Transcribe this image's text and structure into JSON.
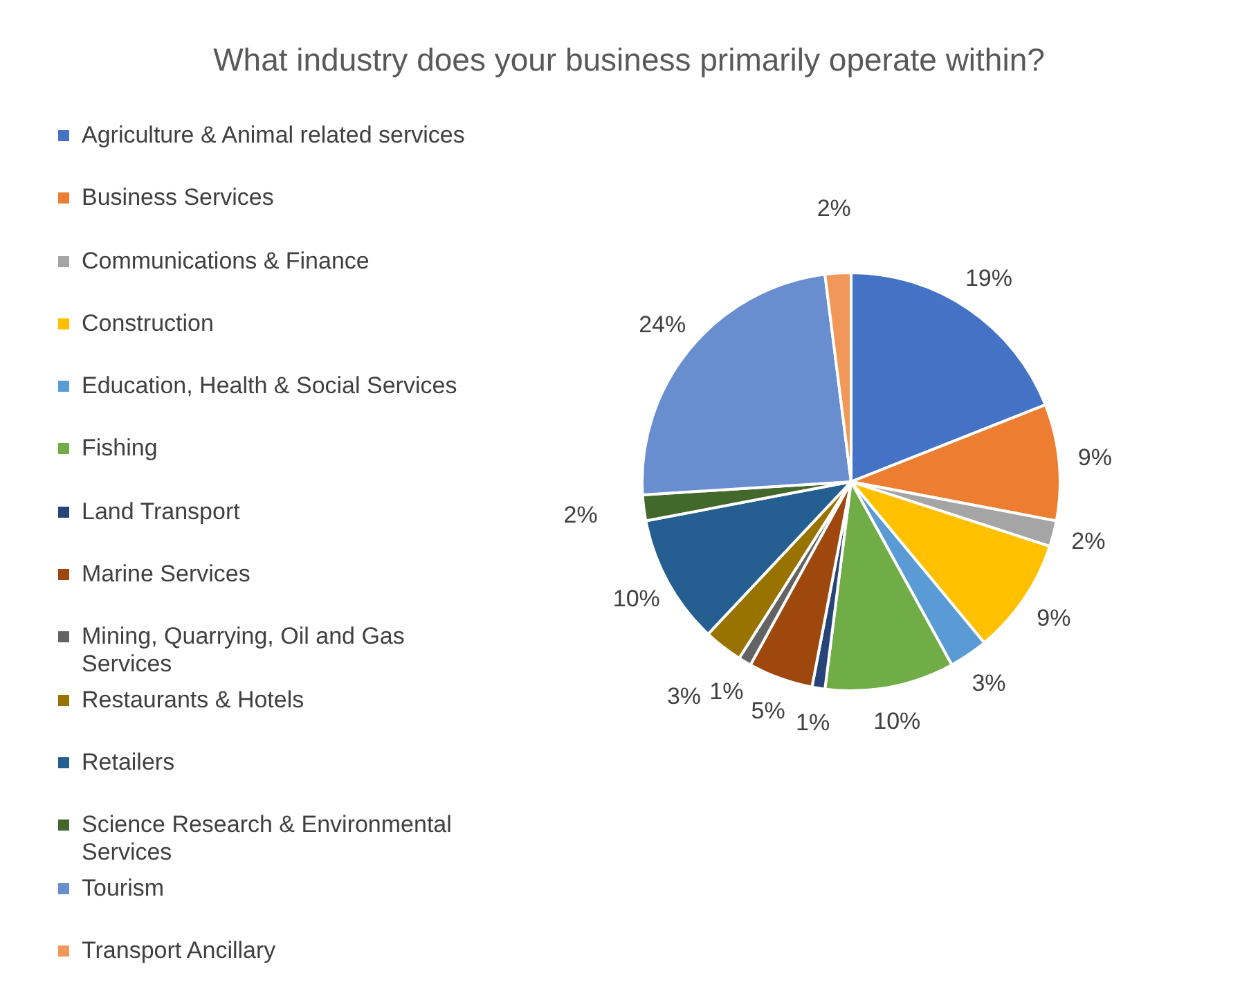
{
  "chart_data": {
    "type": "pie",
    "title": "What industry does your business primarily operate within?",
    "categories": [
      "Agriculture & Animal related services",
      "Business Services",
      "Communications & Finance",
      "Construction",
      "Education, Health & Social Services",
      "Fishing",
      "Land Transport",
      "Marine Services",
      "Mining, Quarrying, Oil and Gas Services",
      "Restaurants & Hotels",
      "Retailers",
      "Science Research & Environmental Services",
      "Tourism",
      "Transport Ancillary"
    ],
    "values": [
      19,
      9,
      2,
      9,
      3,
      10,
      1,
      5,
      1,
      3,
      10,
      2,
      24,
      2
    ],
    "colors": [
      "#4472c4",
      "#ed7d31",
      "#a5a5a5",
      "#ffc000",
      "#5b9bd5",
      "#70ad47",
      "#264478",
      "#9e480e",
      "#636363",
      "#997300",
      "#255e91",
      "#43682b",
      "#698ed0",
      "#f1975a"
    ],
    "value_labels": [
      "19%",
      "9%",
      "2%",
      "9%",
      "3%",
      "10%",
      "1%",
      "5%",
      "1%",
      "3%",
      "10%",
      "2%",
      "24%",
      "2%"
    ],
    "legend": "left"
  }
}
